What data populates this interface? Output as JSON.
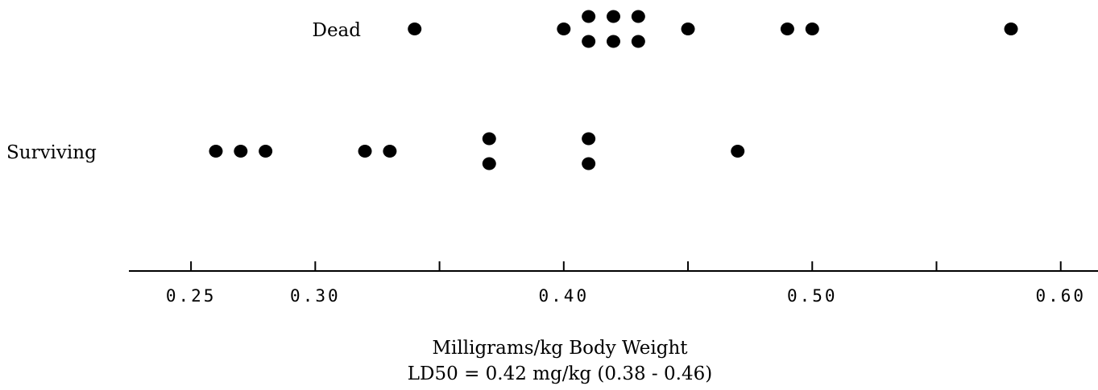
{
  "chart_data": {
    "type": "dot",
    "x_label": "Milligrams/kg Body Weight",
    "annotation": "LD50 = 0.42 mg/kg (0.38 - 0.46)",
    "xlim": [
      0.225,
      0.615
    ],
    "xticks": [
      0.25,
      {
        "value": 0.3,
        "label": "0.30"
      },
      {
        "value": 0.4,
        "label": "0.40"
      },
      {
        "value": 0.5,
        "label": "0.50"
      },
      {
        "value": 0.6,
        "label": "0.60"
      }
    ],
    "xminor_ticks": [
      0.35,
      0.45,
      0.55
    ],
    "series": [
      {
        "name": "Dead",
        "color": "#000000",
        "values": [
          0.34,
          0.4,
          0.41,
          0.41,
          0.42,
          0.42,
          0.43,
          0.43,
          0.45,
          0.49,
          0.5,
          0.58
        ]
      },
      {
        "name": "Surviving",
        "color": "#000000",
        "values": [
          0.26,
          0.27,
          0.28,
          0.32,
          0.33,
          0.37,
          0.37,
          0.41,
          0.41,
          0.47
        ]
      }
    ]
  }
}
